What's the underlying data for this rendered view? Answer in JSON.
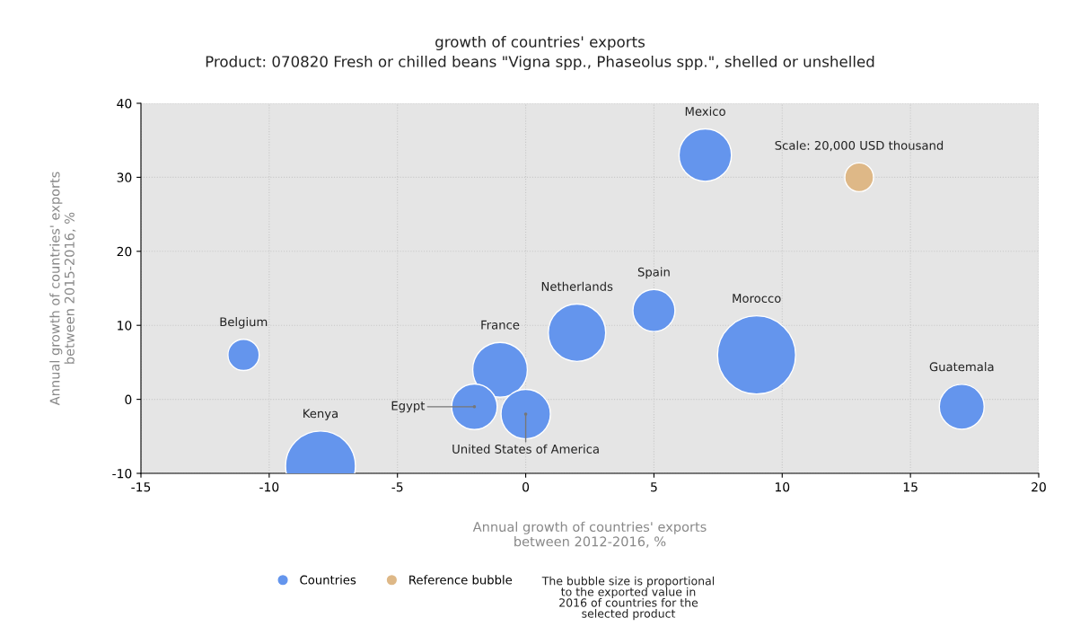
{
  "chart_data": {
    "type": "bubble",
    "title": "growth of countries' exports",
    "subtitle": "Product: 070820 Fresh or chilled beans \"Vigna spp., Phaseolus spp.\", shelled or unshelled",
    "xlabel": "Annual growth of countries' exports\nbetween 2012-2016, %",
    "ylabel": "Annual growth of countries' exports\nbetween 2015-2016, %",
    "series": [
      {
        "name": "Countries",
        "color": "#6495ed",
        "x": [
          7,
          5,
          2,
          9,
          17,
          -11,
          -1,
          -2,
          0,
          -8
        ],
        "values": [
          33,
          12,
          9,
          6,
          -1,
          6,
          4,
          -1,
          -2,
          -9
        ],
        "sizes": [
          0.45,
          0.29,
          0.54,
          1,
          0.33,
          0.16,
          0.49,
          0.34,
          0.4,
          0.8
        ]
      },
      {
        "name": "Reference bubble",
        "color": "#deb887",
        "x": [
          13
        ],
        "values": [
          30
        ],
        "sizes": [
          0.135
        ]
      }
    ],
    "annotations": [
      "Mexico",
      "Spain",
      "Netherlands",
      "Morocco",
      "Guatemala",
      "Belgium",
      "France",
      {
        "text": "Egypt",
        "x": -2,
        "y": -1
      },
      {
        "text": "United States of America",
        "x": 0,
        "y": -2
      },
      "Kenya",
      "Scale: 20,000 USD thousand",
      "The bubble size is proportional\nto the exported value in\n2016 of countries for the\nselected product"
    ],
    "xlim": [
      -15,
      20
    ],
    "xticks": [
      -15,
      -10,
      -5,
      0,
      5,
      10,
      15,
      20
    ],
    "ylim": [
      -10,
      40
    ],
    "yticks": [
      -10,
      0,
      10,
      20,
      30,
      40
    ],
    "grid": true,
    "legend": "bottom",
    "marker": "circle"
  }
}
